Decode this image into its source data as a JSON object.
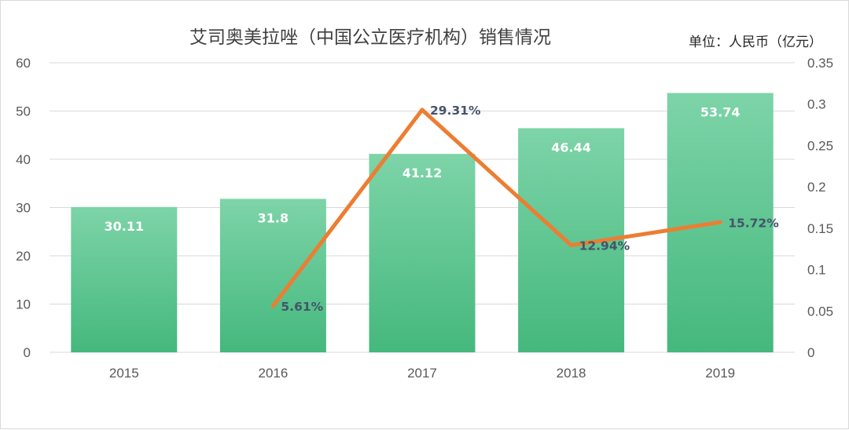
{
  "chart_data": {
    "type": "bar",
    "title": "艾司奥美拉唑（中国公立医疗机构）销售情况",
    "unit_note": "单位：人民币（亿元）",
    "categories": [
      "2015",
      "2016",
      "2017",
      "2018",
      "2019"
    ],
    "series": [
      {
        "type": "bar",
        "values": [
          30.11,
          31.8,
          41.12,
          46.44,
          53.74
        ],
        "value_labels": [
          "30.11",
          "31.8",
          "41.12",
          "46.44",
          "53.74"
        ],
        "axis": "left"
      },
      {
        "type": "line",
        "values": [
          null,
          0.0561,
          0.2931,
          0.1294,
          0.1572
        ],
        "value_labels": [
          null,
          "5.61%",
          "29.31%",
          "12.94%",
          "15.72%"
        ],
        "axis": "right"
      }
    ],
    "y_left": {
      "min": 0,
      "max": 60,
      "ticks": [
        "0",
        "10",
        "20",
        "30",
        "40",
        "50",
        "60"
      ]
    },
    "y_right": {
      "min": 0,
      "max": 0.35,
      "ticks": [
        "0",
        "0.05",
        "0.1",
        "0.15",
        "0.2",
        "0.25",
        "0.3",
        "0.35"
      ]
    },
    "grid": true,
    "colors": {
      "bar_top": "#7dd4a8",
      "bar_bottom": "#45b87d",
      "line": "#ed7d31"
    }
  }
}
